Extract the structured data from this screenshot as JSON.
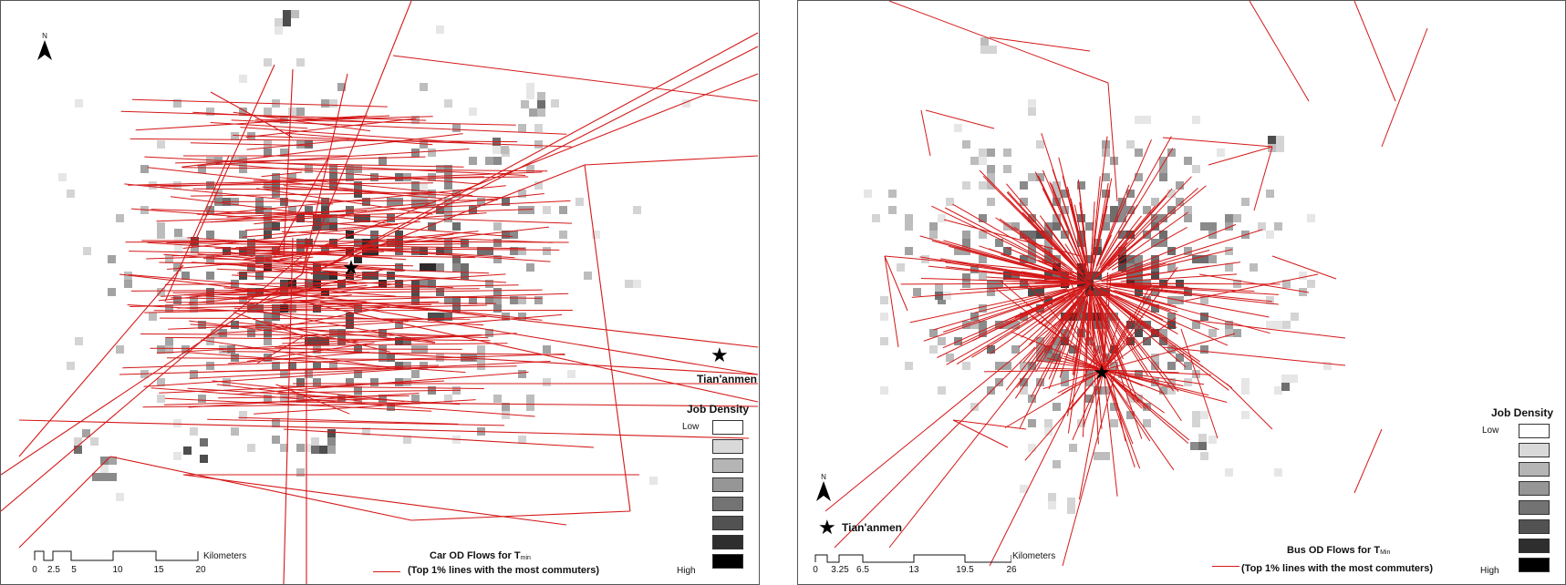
{
  "colors": {
    "flow_line": "#d41818",
    "border": "#555555"
  },
  "panels": [
    {
      "id": "car",
      "landmark_label": "Tian'anmen",
      "legend_title": "Job Density",
      "legend_low": "Low",
      "legend_high": "High",
      "legend_classes": [
        "#ffffff",
        "#d9d9d9",
        "#b5b5b5",
        "#969696",
        "#737373",
        "#525252",
        "#2e2e2e",
        "#000000"
      ],
      "north_label": "N",
      "flow_title_main": "Car OD Flows for T",
      "flow_title_sub": "min",
      "flow_note": "(Top 1% lines with the most commuters)",
      "scale_unit": "Kilometers",
      "scale_ticks": [
        "0",
        "2.5",
        "5",
        "10",
        "15",
        "20"
      ]
    },
    {
      "id": "bus",
      "landmark_label": "Tian'anmen",
      "legend_title": "Job Density",
      "legend_low": "Low",
      "legend_high": "High",
      "legend_classes": [
        "#ffffff",
        "#d9d9d9",
        "#b5b5b5",
        "#969696",
        "#737373",
        "#525252",
        "#2e2e2e",
        "#000000"
      ],
      "north_label": "N",
      "flow_title_main": "Bus OD Flows for T",
      "flow_title_sub": "Min",
      "flow_note": "(Top 1% lines with the most commuters)",
      "scale_unit": "Kilometers",
      "scale_ticks": [
        "0",
        "3.25",
        "6.5",
        "13",
        "19.5",
        "26"
      ]
    }
  ]
}
